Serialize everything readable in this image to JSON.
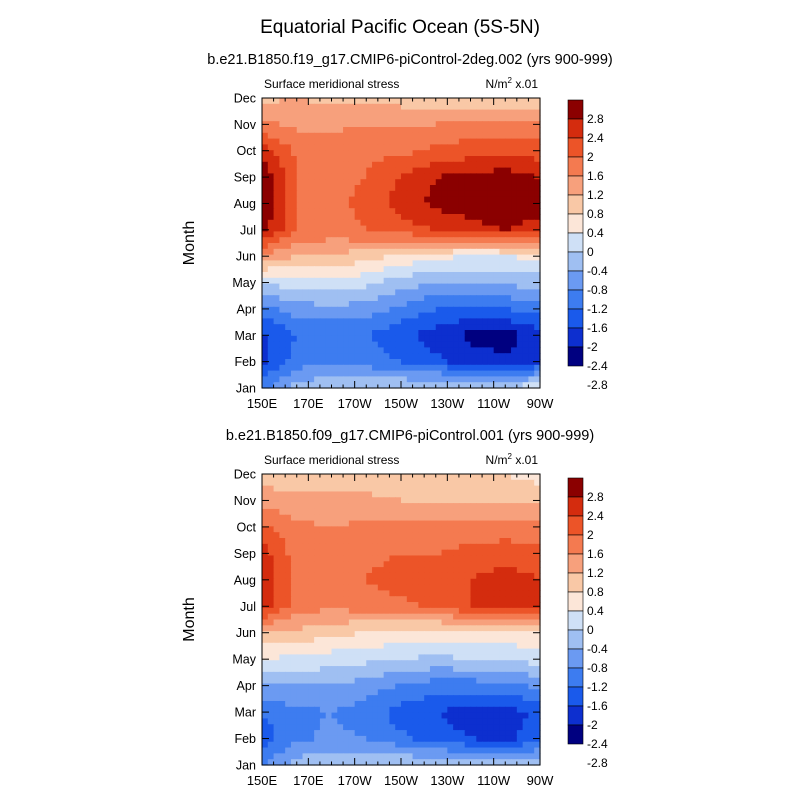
{
  "figure": {
    "title": "Equatorial Pacific Ocean (5S-5N)"
  },
  "palette": [
    "#000080",
    "#0d2fcf",
    "#1a5aeb",
    "#3d7cf0",
    "#6b9af2",
    "#9fbff2",
    "#cfe0f6",
    "#fce6d8",
    "#f9c8a6",
    "#f7a07c",
    "#f47a50",
    "#ec5428",
    "#d42c0e",
    "#8b0000"
  ],
  "colorbar_labels": [
    "2.8",
    "2.4",
    "2",
    "1.6",
    "1.2",
    "0.8",
    "0.4",
    "0",
    "-0.4",
    "-0.8",
    "-1.2",
    "-1.6",
    "-2",
    "-2.4",
    "-2.8"
  ],
  "chart_data": [
    {
      "type": "heatmap",
      "title": "b.e21.B1850.f19_g17.CMIP6-piControl-2deg.002 (yrs 900-999)",
      "left_label": "Surface meridional stress",
      "right_label": "N/m",
      "right_label_sup": "2",
      "right_label_tail": " x.01",
      "xlabel": "",
      "ylabel": "Month",
      "x_ticks": [
        "150E",
        "170E",
        "170W",
        "150W",
        "130W",
        "110W",
        "90W"
      ],
      "y_ticks": [
        "Jan",
        "Feb",
        "Mar",
        "Apr",
        "May",
        "Jun",
        "Jul",
        "Aug",
        "Sep",
        "Oct",
        "Nov",
        "Dec"
      ],
      "x_range_deg_east": [
        150,
        270
      ],
      "levels": [
        -2.8,
        -2.4,
        -2.0,
        -1.6,
        -1.2,
        -0.8,
        -0.4,
        0,
        0.4,
        0.8,
        1.2,
        1.6,
        2.0,
        2.4,
        2.8
      ],
      "cols_lon": [
        150,
        165,
        180,
        195,
        210,
        225,
        240,
        255,
        270
      ],
      "values": [
        [
          -1.8,
          -1.0,
          -0.9,
          -0.8,
          -0.8,
          -0.7,
          -0.7,
          -0.7,
          -0.5
        ],
        [
          -2.5,
          -1.8,
          -1.6,
          -1.8,
          -2.0,
          -2.3,
          -2.6,
          -2.7,
          -2.4
        ],
        [
          -2.5,
          -2.0,
          -2.0,
          -2.0,
          -2.3,
          -2.6,
          -2.9,
          -3.0,
          -2.6
        ],
        [
          -1.8,
          -1.4,
          -1.3,
          -1.4,
          -1.7,
          -2.0,
          -2.1,
          -2.0,
          -1.8
        ],
        [
          -0.7,
          -0.6,
          -0.5,
          -0.7,
          -1.0,
          -1.2,
          -1.2,
          -1.1,
          -1.0
        ],
        [
          0.7,
          0.4,
          0.3,
          0.2,
          -0.1,
          -0.3,
          -0.4,
          -0.4,
          -0.3
        ],
        [
          2.2,
          1.2,
          1.1,
          1.2,
          1.4,
          1.6,
          1.8,
          2.0,
          1.8
        ],
        [
          2.4,
          1.2,
          1.1,
          1.3,
          1.8,
          2.1,
          2.3,
          2.4,
          2.2
        ],
        [
          2.4,
          1.2,
          1.1,
          1.2,
          1.6,
          2.0,
          2.1,
          2.2,
          2.0
        ],
        [
          1.8,
          1.1,
          1.0,
          1.1,
          1.1,
          1.3,
          1.4,
          1.5,
          1.4
        ],
        [
          0.9,
          0.7,
          0.7,
          0.8,
          0.8,
          0.8,
          0.9,
          0.9,
          0.9
        ],
        [
          0.3,
          0.4,
          0.3,
          0.3,
          0.2,
          0.2,
          0.1,
          0.1,
          0.0
        ]
      ]
    },
    {
      "type": "heatmap",
      "title": "b.e21.B1850.f09_g17.CMIP6-piControl.001 (yrs 900-999)",
      "left_label": "Surface meridional stress",
      "right_label": "N/m",
      "right_label_sup": "2",
      "right_label_tail": " x.01",
      "xlabel": "",
      "ylabel": "Month",
      "x_ticks": [
        "150E",
        "170E",
        "170W",
        "150W",
        "130W",
        "110W",
        "90W"
      ],
      "y_ticks": [
        "Jan",
        "Feb",
        "Mar",
        "Apr",
        "May",
        "Jun",
        "Jul",
        "Aug",
        "Sep",
        "Oct",
        "Nov",
        "Dec"
      ],
      "x_range_deg_east": [
        150,
        270
      ],
      "levels": [
        -2.8,
        -2.4,
        -2.0,
        -1.6,
        -1.2,
        -0.8,
        -0.4,
        0,
        0.4,
        0.8,
        1.2,
        1.6,
        2.0,
        2.4,
        2.8
      ],
      "cols_lon": [
        150,
        165,
        180,
        195,
        210,
        225,
        240,
        255,
        270
      ],
      "values": [
        [
          -1.6,
          -1.0,
          -0.9,
          -0.8,
          -0.8,
          -0.8,
          -0.8,
          -0.9,
          -0.8
        ],
        [
          -2.2,
          -1.7,
          -1.5,
          -1.6,
          -1.9,
          -2.2,
          -2.4,
          -2.5,
          -2.2
        ],
        [
          -2.0,
          -1.7,
          -1.6,
          -1.8,
          -2.2,
          -2.4,
          -2.6,
          -2.6,
          -2.3
        ],
        [
          -1.2,
          -1.2,
          -1.2,
          -1.4,
          -1.6,
          -1.8,
          -1.8,
          -1.7,
          -1.5
        ],
        [
          -0.4,
          -0.5,
          -0.6,
          -0.7,
          -0.8,
          -0.9,
          -0.8,
          -0.8,
          -0.6
        ],
        [
          0.4,
          0.3,
          0.1,
          0.0,
          -0.1,
          -0.2,
          -0.2,
          -0.1,
          0.0
        ],
        [
          1.8,
          1.0,
          0.9,
          1.0,
          1.1,
          1.3,
          1.6,
          1.9,
          1.7
        ],
        [
          1.9,
          1.0,
          0.9,
          1.2,
          1.4,
          1.5,
          1.6,
          1.8,
          1.6
        ],
        [
          1.8,
          1.0,
          0.9,
          1.1,
          1.2,
          1.2,
          1.3,
          1.4,
          1.3
        ],
        [
          1.3,
          0.9,
          0.8,
          0.9,
          0.9,
          0.9,
          1.0,
          1.0,
          1.0
        ],
        [
          0.6,
          0.5,
          0.5,
          0.5,
          0.4,
          0.4,
          0.4,
          0.4,
          0.3
        ],
        [
          0.2,
          0.2,
          0.2,
          0.1,
          0.1,
          0.0,
          0.0,
          0.0,
          -0.2
        ]
      ]
    }
  ]
}
